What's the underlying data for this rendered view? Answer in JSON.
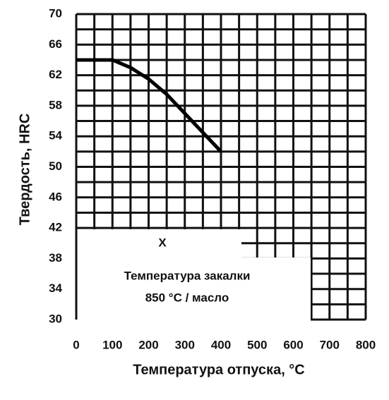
{
  "chart_data": {
    "type": "line",
    "xlabel": "Температура отпуска, °C",
    "ylabel": "Твердость, HRC",
    "x": [
      0,
      100,
      150,
      200,
      250,
      300,
      350,
      400
    ],
    "series": [
      {
        "color": "#000000",
        "values": [
          64,
          64,
          63,
          61.5,
          59.5,
          57,
          54.5,
          52
        ]
      }
    ],
    "xlim": [
      0,
      800
    ],
    "xticks": [
      0,
      100,
      200,
      300,
      400,
      500,
      600,
      700,
      800
    ],
    "ylim": [
      30,
      70
    ],
    "yticks": [
      30,
      34,
      38,
      42,
      46,
      50,
      54,
      58,
      62,
      66,
      70
    ],
    "grid": true,
    "annotations": [
      "X",
      "Температура закалки",
      "850 °C / масло"
    ]
  }
}
